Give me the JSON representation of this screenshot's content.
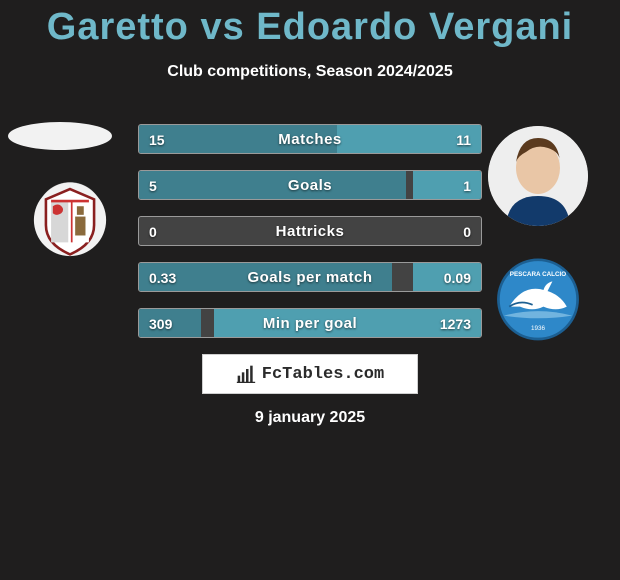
{
  "title": "Garetto vs Edoardo Vergani",
  "subtitle": "Club competitions, Season 2024/2025",
  "date_text": "9 january 2025",
  "watermark_text": "FcTables.com",
  "colors": {
    "title": "#6fb8c9",
    "bg": "#1f1e1e",
    "bar_bg": "#434343",
    "bar_border": "#9a9a9a",
    "bar_left_fill": "#3f7f8e",
    "bar_right_fill": "#4f9fb0",
    "text": "#ffffff"
  },
  "stats": [
    {
      "label": "Matches",
      "left_val": "15",
      "right_val": "11",
      "left_pct": 58,
      "right_pct": 42
    },
    {
      "label": "Goals",
      "left_val": "5",
      "right_val": "1",
      "left_pct": 78,
      "right_pct": 20
    },
    {
      "label": "Hattricks",
      "left_val": "0",
      "right_val": "0",
      "left_pct": 0,
      "right_pct": 0
    },
    {
      "label": "Goals per match",
      "left_val": "0.33",
      "right_val": "0.09",
      "left_pct": 74,
      "right_pct": 20
    },
    {
      "label": "Min per goal",
      "left_val": "309",
      "right_val": "1273",
      "left_pct": 18,
      "right_pct": 78
    }
  ]
}
